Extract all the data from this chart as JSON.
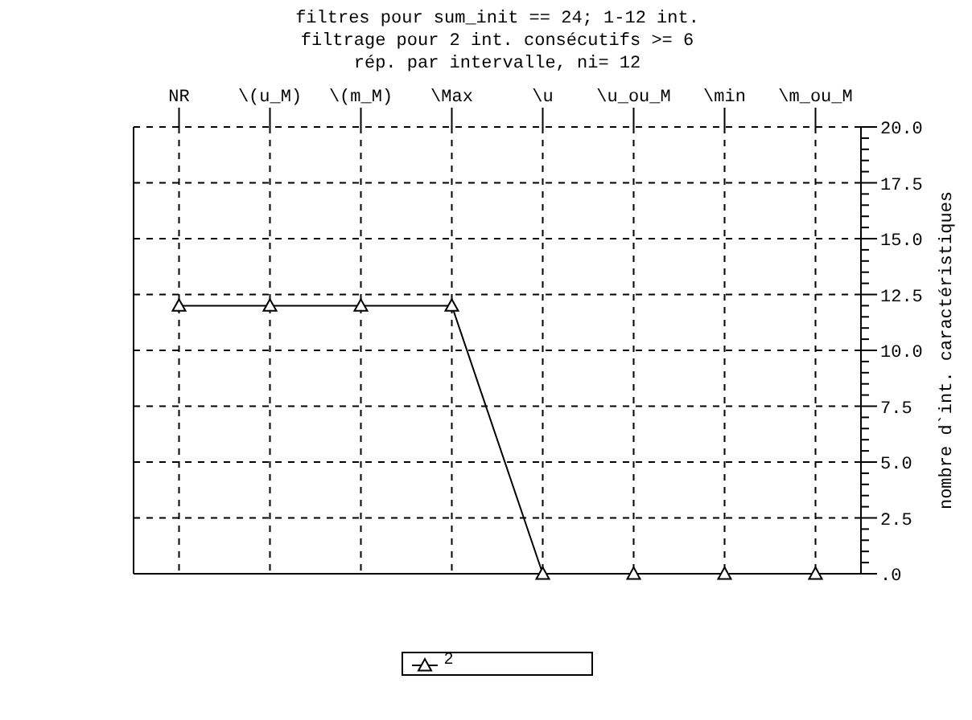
{
  "chart_data": {
    "type": "line",
    "title": "filtres pour sum_init == 24; 1-12 int.",
    "subtitle": "filtrage pour 2 int. consécutifs >=  6\nrép. par intervalle, ni= 12",
    "ylabel": "nombre d`int. caractéristiques",
    "categories": [
      "NR",
      "\\(u_M)",
      "\\(m_M)",
      "\\Max",
      "\\u",
      "\\u_ou_M",
      "\\min",
      "\\m_ou_M"
    ],
    "series": [
      {
        "name": "2",
        "color": "#000000",
        "values": [
          12,
          12,
          12,
          12,
          0,
          0,
          0,
          0
        ]
      }
    ],
    "ylim": [
      0,
      20
    ],
    "yticks": [
      {
        "value": 0,
        "label": ".0"
      },
      {
        "value": 2.5,
        "label": "2.5"
      },
      {
        "value": 5,
        "label": "5.0"
      },
      {
        "value": 7.5,
        "label": "7.5"
      },
      {
        "value": 10,
        "label": "10.0"
      },
      {
        "value": 12.5,
        "label": "12.5"
      },
      {
        "value": 15,
        "label": "15.0"
      },
      {
        "value": 17.5,
        "label": "17.5"
      },
      {
        "value": 20,
        "label": "20.0"
      },
      {
        "value": 0.5,
        "label": null
      },
      {
        "value": 1,
        "label": null
      },
      {
        "value": 1.5,
        "label": null
      },
      {
        "value": 2,
        "label": null
      },
      {
        "value": 3,
        "label": null
      },
      {
        "value": 3.5,
        "label": null
      },
      {
        "value": 4,
        "label": null
      },
      {
        "value": 4.5,
        "label": null
      },
      {
        "value": 5.5,
        "label": null
      },
      {
        "value": 6,
        "label": null
      },
      {
        "value": 6.5,
        "label": null
      },
      {
        "value": 7,
        "label": null
      },
      {
        "value": 8,
        "label": null
      },
      {
        "value": 8.5,
        "label": null
      },
      {
        "value": 9,
        "label": null
      },
      {
        "value": 9.5,
        "label": null
      },
      {
        "value": 10.5,
        "label": null
      },
      {
        "value": 11,
        "label": null
      },
      {
        "value": 11.5,
        "label": null
      },
      {
        "value": 12,
        "label": null
      },
      {
        "value": 13,
        "label": null
      },
      {
        "value": 13.5,
        "label": null
      },
      {
        "value": 14,
        "label": null
      },
      {
        "value": 14.5,
        "label": null
      },
      {
        "value": 15.5,
        "label": null
      },
      {
        "value": 16,
        "label": null
      },
      {
        "value": 16.5,
        "label": null
      },
      {
        "value": 17,
        "label": null
      },
      {
        "value": 18,
        "label": null
      },
      {
        "value": 18.5,
        "label": null
      },
      {
        "value": 19,
        "label": null
      },
      {
        "value": 19.5,
        "label": null
      }
    ],
    "grid": true,
    "legend": "bottom",
    "marker": "triangle",
    "line_style": "solid"
  }
}
